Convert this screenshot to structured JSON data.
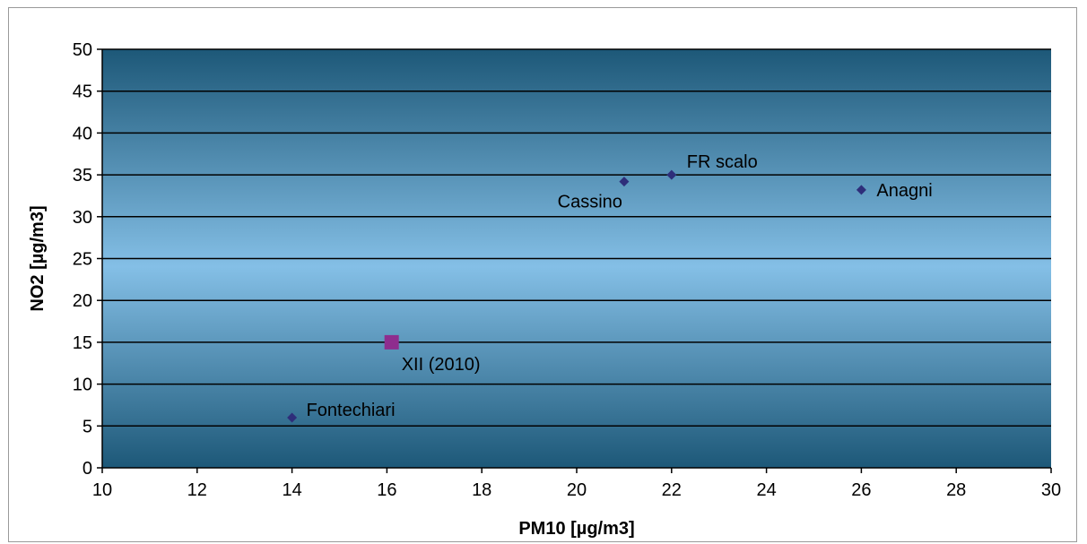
{
  "chart_data": {
    "type": "scatter",
    "xlabel": "PM10 [µg/m3]",
    "ylabel": "NO2 [µg/m3]",
    "xlim": [
      10,
      30
    ],
    "ylim": [
      0,
      50
    ],
    "x_ticks": [
      "10",
      "12",
      "14",
      "16",
      "18",
      "20",
      "22",
      "24",
      "26",
      "28",
      "30"
    ],
    "y_ticks": [
      "0",
      "5",
      "10",
      "15",
      "20",
      "25",
      "30",
      "35",
      "40",
      "45",
      "50"
    ],
    "grid": "horizontal",
    "legend": "none",
    "series": [
      {
        "marker": "diamond",
        "color": "#2e2e7a",
        "points": [
          {
            "label": "Fontechiari",
            "x": 14,
            "y": 6
          },
          {
            "label": "Cassino",
            "x": 21,
            "y": 34.2
          },
          {
            "label": "FR scalo",
            "x": 22,
            "y": 35
          },
          {
            "label": "Anagni",
            "x": 26,
            "y": 33.2
          }
        ]
      },
      {
        "marker": "square",
        "color": "#8e2d8e",
        "points": [
          {
            "label": "XII (2010)",
            "x": 16.1,
            "y": 15
          }
        ]
      }
    ],
    "plot_gradient": [
      "#1d5878",
      "#84bfe6",
      "#1d5878"
    ]
  }
}
